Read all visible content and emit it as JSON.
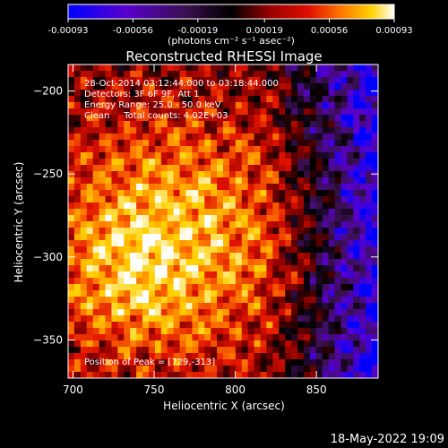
{
  "chart_data": {
    "type": "heatmap",
    "title": "Reconstructed RHESSI Image",
    "xlabel": "Heliocentric X (arcsec)",
    "ylabel": "Heliocentric Y (arcsec)",
    "xlim": [
      697,
      888
    ],
    "ylim": [
      -373,
      -184
    ],
    "x_ticks": [
      700,
      750,
      800,
      850
    ],
    "y_ticks": [
      -200,
      -250,
      -300,
      -350
    ],
    "x_tick_labels": [
      "700",
      "750",
      "800",
      "850"
    ],
    "y_tick_labels": [
      "−200",
      "−250",
      "−300",
      "−350"
    ],
    "colorbar": {
      "ticks": [
        -0.00093,
        -0.00056,
        -0.00019,
        0.00019,
        0.00056,
        0.00093
      ],
      "tick_labels": [
        "-0.00093",
        "-0.00056",
        "-0.00019",
        "0.00019",
        "0.00056",
        "0.00093"
      ],
      "unit_label": "(photons cm⁻² s⁻¹ asec⁻²)",
      "range": [
        -0.00093,
        0.00093
      ]
    },
    "colormap": [
      "#0000ff",
      "#5a00cc",
      "#3a1050",
      "#000000",
      "#7a0000",
      "#e01000",
      "#ff7a00",
      "#ffd200",
      "#ffffff"
    ],
    "annotations": [
      "28-Oct-2014 03:12:44.000 to 03:18:44.000",
      "Detectors: 3F 6F 9F, Att 1",
      "Energy Range: 25.0 - 50.0 keV",
      "Clean     Total counts: 4.02E+03"
    ],
    "peak_label": "Position of Peak = [729,-313]",
    "peak": [
      729,
      -313
    ],
    "grid": false
  },
  "footer": {
    "timestamp": "18-May-2022 19:09"
  }
}
